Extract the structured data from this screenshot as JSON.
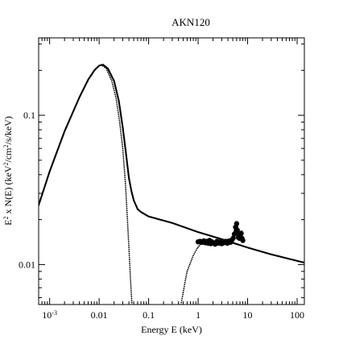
{
  "chart_data": {
    "type": "scatter",
    "title": "AKN120",
    "xlabel": "Energy E (keV)",
    "ylabel": "E² x N(E) (keV²/cm²/s/keV)",
    "x_scale": "log",
    "y_scale": "log",
    "xlim": [
      0.0006,
      140
    ],
    "ylim": [
      0.0054,
      0.33
    ],
    "x_ticks": [
      {
        "value": 0.001,
        "base": "10",
        "exp": "-3"
      },
      {
        "value": 0.01,
        "label": "0.01"
      },
      {
        "value": 0.1,
        "label": "0.1"
      },
      {
        "value": 1,
        "label": "1"
      },
      {
        "value": 10,
        "label": "10"
      },
      {
        "value": 100,
        "label": "100"
      }
    ],
    "y_ticks": [
      {
        "value": 0.01,
        "label": "0.01"
      },
      {
        "value": 0.1,
        "label": "0.1"
      }
    ],
    "grid": false,
    "legend": "none",
    "series": [
      {
        "role": "total-model",
        "color": "#000000",
        "points": [
          [
            0.0006,
            0.025
          ],
          [
            0.001,
            0.042
          ],
          [
            0.002,
            0.078
          ],
          [
            0.004,
            0.132
          ],
          [
            0.006,
            0.173
          ],
          [
            0.008,
            0.2
          ],
          [
            0.01,
            0.215
          ],
          [
            0.012,
            0.218
          ],
          [
            0.015,
            0.206
          ],
          [
            0.02,
            0.17
          ],
          [
            0.025,
            0.125
          ],
          [
            0.03,
            0.083
          ],
          [
            0.035,
            0.055
          ],
          [
            0.04,
            0.038
          ],
          [
            0.045,
            0.031
          ],
          [
            0.05,
            0.027
          ],
          [
            0.06,
            0.0235
          ],
          [
            0.07,
            0.0225
          ],
          [
            0.1,
            0.021
          ],
          [
            0.3,
            0.019
          ],
          [
            1,
            0.0165
          ],
          [
            3,
            0.0148
          ],
          [
            10,
            0.013
          ],
          [
            30,
            0.0117
          ],
          [
            140,
            0.0103
          ]
        ]
      },
      {
        "role": "soft-blackbody-component",
        "color": "#000000",
        "points": [
          [
            0.011,
            0.218
          ],
          [
            0.014,
            0.205
          ],
          [
            0.018,
            0.17
          ],
          [
            0.022,
            0.13
          ],
          [
            0.026,
            0.09
          ],
          [
            0.03,
            0.06
          ],
          [
            0.034,
            0.035
          ],
          [
            0.037,
            0.021
          ],
          [
            0.04,
            0.013
          ],
          [
            0.043,
            0.008
          ],
          [
            0.046,
            0.0054
          ]
        ]
      },
      {
        "role": "absorbed-component",
        "color": "#000000",
        "points": [
          [
            0.45,
            0.0054
          ],
          [
            0.5,
            0.0065
          ],
          [
            0.55,
            0.0078
          ],
          [
            0.6,
            0.009
          ],
          [
            0.7,
            0.0103
          ],
          [
            0.8,
            0.0115
          ],
          [
            0.95,
            0.0128
          ],
          [
            1.1,
            0.0136
          ],
          [
            1.3,
            0.014
          ],
          [
            1.6,
            0.0142
          ],
          [
            2,
            0.0143
          ],
          [
            3,
            0.0142
          ],
          [
            5,
            0.0139
          ],
          [
            7,
            0.0135
          ],
          [
            10,
            0.013
          ]
        ]
      },
      {
        "role": "data-points",
        "color": "#000000",
        "points": [
          [
            1.0,
            0.0142
          ],
          [
            1.1,
            0.0143
          ],
          [
            1.2,
            0.0141
          ],
          [
            1.3,
            0.0144
          ],
          [
            1.4,
            0.014
          ],
          [
            1.5,
            0.0143
          ],
          [
            1.6,
            0.0139
          ],
          [
            1.7,
            0.0145
          ],
          [
            1.8,
            0.0138
          ],
          [
            1.9,
            0.0142
          ],
          [
            2.0,
            0.014
          ],
          [
            2.2,
            0.0137
          ],
          [
            2.4,
            0.0143
          ],
          [
            2.6,
            0.0139
          ],
          [
            2.8,
            0.0142
          ],
          [
            3.0,
            0.0138
          ],
          [
            3.3,
            0.014
          ],
          [
            3.6,
            0.0143
          ],
          [
            3.9,
            0.0139
          ],
          [
            4.2,
            0.0144
          ],
          [
            4.5,
            0.0141
          ],
          [
            4.8,
            0.0146
          ],
          [
            5.1,
            0.015
          ],
          [
            5.4,
            0.016
          ],
          [
            5.7,
            0.0178
          ],
          [
            6.0,
            0.0188
          ],
          [
            6.2,
            0.017
          ],
          [
            6.5,
            0.0152
          ],
          [
            6.8,
            0.015
          ],
          [
            7.1,
            0.0158
          ],
          [
            7.4,
            0.0162
          ],
          [
            7.7,
            0.015
          ],
          [
            8.0,
            0.0145
          ]
        ]
      }
    ]
  }
}
